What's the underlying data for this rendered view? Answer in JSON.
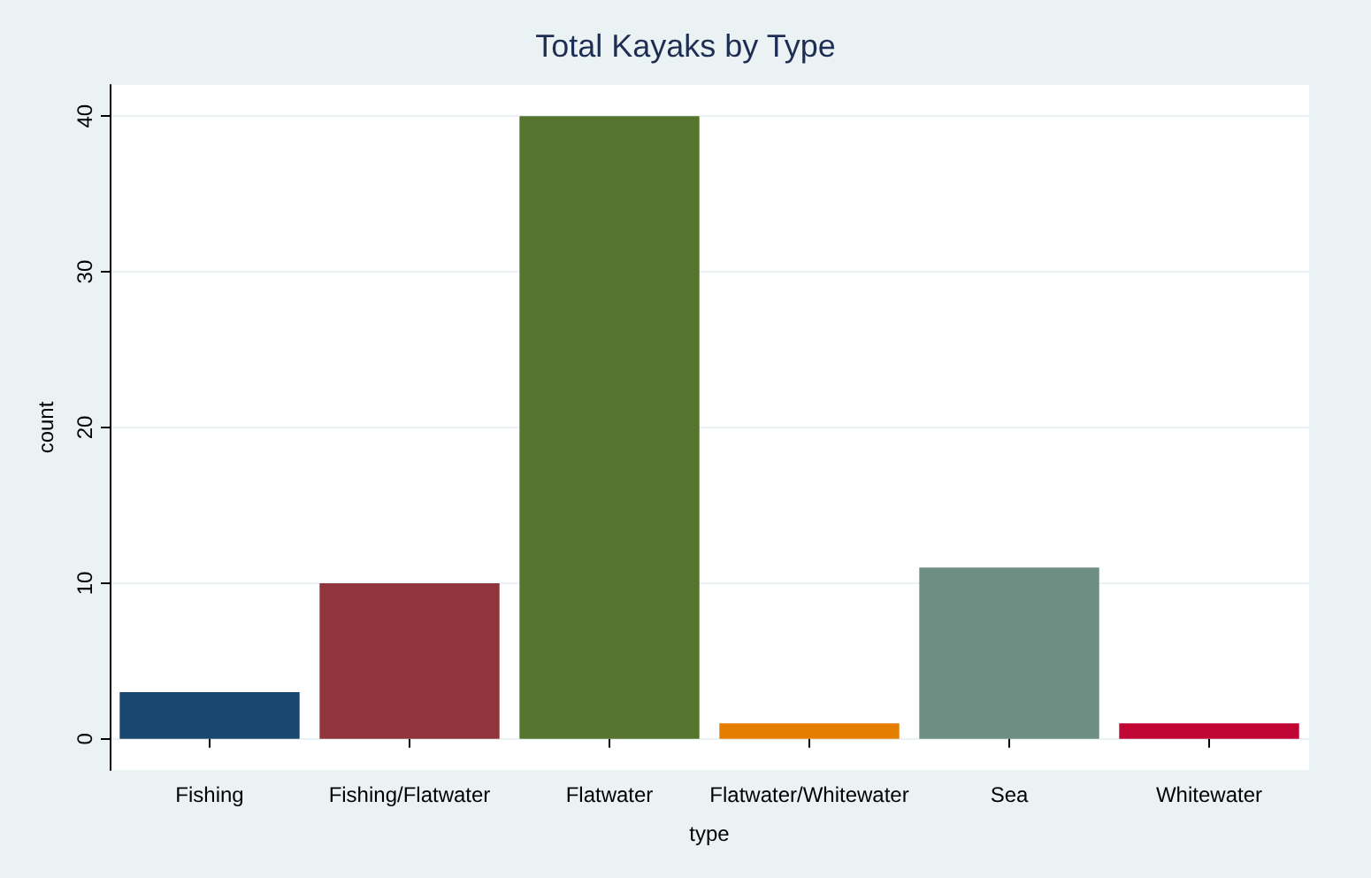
{
  "chart_data": {
    "type": "bar",
    "title": "Total Kayaks by Type",
    "xlabel": "type",
    "ylabel": "count",
    "categories": [
      "Fishing",
      "Fishing/Flatwater",
      "Flatwater",
      "Flatwater/Whitewater",
      "Sea",
      "Whitewater"
    ],
    "values": [
      3,
      10,
      40,
      1,
      11,
      1
    ],
    "colors": [
      "#1a476f",
      "#90353b",
      "#55752f",
      "#e37e00",
      "#6e8e84",
      "#c10534"
    ],
    "ylim": [
      -2,
      42
    ],
    "yticks": [
      0,
      10,
      20,
      30,
      40
    ],
    "grid": "y"
  }
}
